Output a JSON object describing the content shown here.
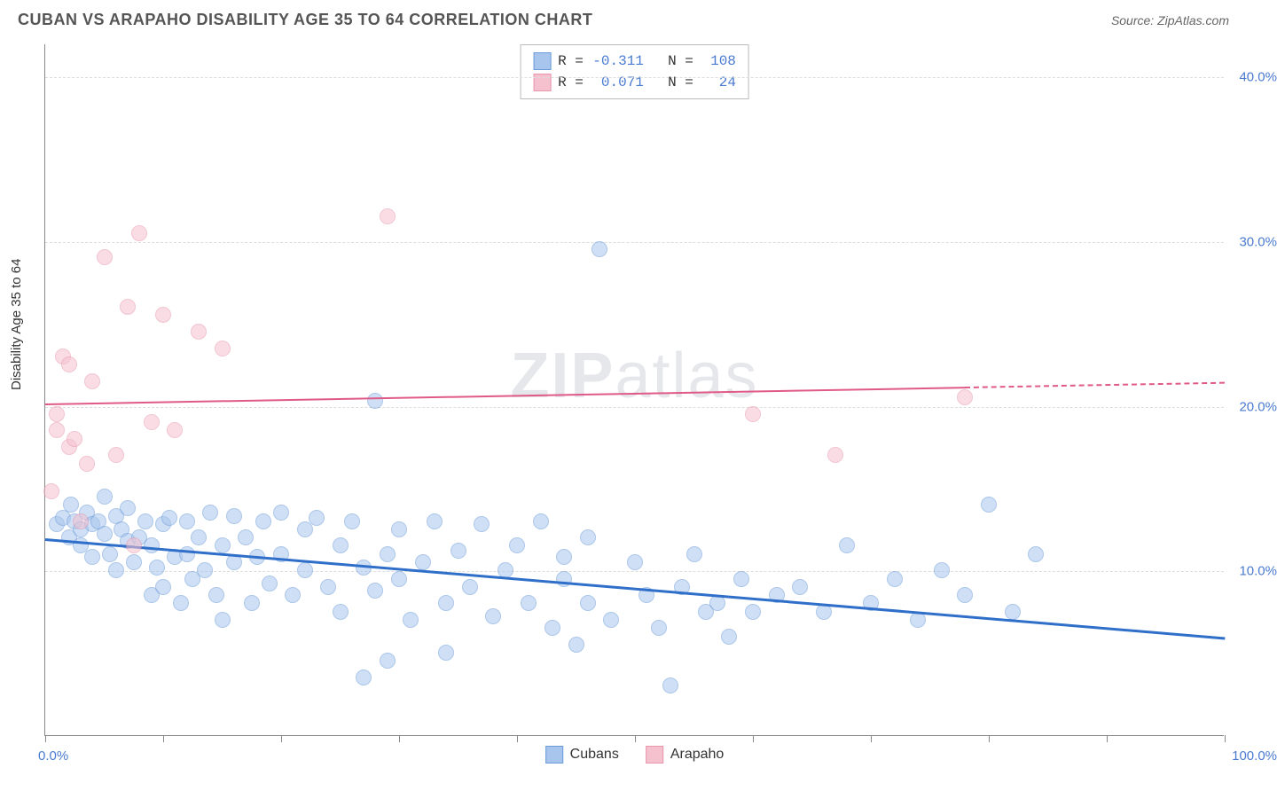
{
  "title": "CUBAN VS ARAPAHO DISABILITY AGE 35 TO 64 CORRELATION CHART",
  "source": "Source: ZipAtlas.com",
  "ylabel": "Disability Age 35 to 64",
  "watermark_bold": "ZIP",
  "watermark_light": "atlas",
  "chart": {
    "type": "scatter",
    "xlim": [
      0,
      100
    ],
    "ylim": [
      0,
      42
    ],
    "yticks": [
      10,
      20,
      30,
      40
    ],
    "ytick_labels": [
      "10.0%",
      "20.0%",
      "30.0%",
      "40.0%"
    ],
    "xticks": [
      0,
      10,
      20,
      30,
      40,
      50,
      60,
      70,
      80,
      90,
      100
    ],
    "xaxis_start_label": "0.0%",
    "xaxis_end_label": "100.0%",
    "background_color": "#ffffff",
    "grid_color": "#dddddd",
    "axis_color": "#888888",
    "ytick_label_color": "#4a7bd0",
    "marker_radius": 9,
    "marker_opacity": 0.55,
    "series": [
      {
        "name": "Cubans",
        "color_fill": "#a8c6ed",
        "color_stroke": "#6a9bd8",
        "R": "-0.311",
        "N": "108",
        "trend": {
          "y_at_x0": 12.0,
          "y_at_x100": 6.0,
          "color": "#2f6fc9",
          "width": 3,
          "dash_from_x": null
        },
        "points": [
          [
            1,
            12.8
          ],
          [
            1.5,
            13.2
          ],
          [
            2,
            12.0
          ],
          [
            2.2,
            14.0
          ],
          [
            2.5,
            13.0
          ],
          [
            3,
            11.5
          ],
          [
            3,
            12.5
          ],
          [
            3.5,
            13.5
          ],
          [
            4,
            12.8
          ],
          [
            4,
            10.8
          ],
          [
            4.5,
            13.0
          ],
          [
            5,
            12.2
          ],
          [
            5,
            14.5
          ],
          [
            5.5,
            11.0
          ],
          [
            6,
            13.3
          ],
          [
            6,
            10.0
          ],
          [
            6.5,
            12.5
          ],
          [
            7,
            11.8
          ],
          [
            7,
            13.8
          ],
          [
            7.5,
            10.5
          ],
          [
            8,
            12.0
          ],
          [
            8.5,
            13.0
          ],
          [
            9,
            11.5
          ],
          [
            9,
            8.5
          ],
          [
            9.5,
            10.2
          ],
          [
            10,
            12.8
          ],
          [
            10,
            9.0
          ],
          [
            10.5,
            13.2
          ],
          [
            11,
            10.8
          ],
          [
            11.5,
            8.0
          ],
          [
            12,
            11.0
          ],
          [
            12,
            13.0
          ],
          [
            12.5,
            9.5
          ],
          [
            13,
            12.0
          ],
          [
            13.5,
            10.0
          ],
          [
            14,
            13.5
          ],
          [
            14.5,
            8.5
          ],
          [
            15,
            11.5
          ],
          [
            15,
            7.0
          ],
          [
            16,
            13.3
          ],
          [
            16,
            10.5
          ],
          [
            17,
            12.0
          ],
          [
            17.5,
            8.0
          ],
          [
            18,
            10.8
          ],
          [
            18.5,
            13.0
          ],
          [
            19,
            9.2
          ],
          [
            20,
            11.0
          ],
          [
            20,
            13.5
          ],
          [
            21,
            8.5
          ],
          [
            22,
            10.0
          ],
          [
            22,
            12.5
          ],
          [
            23,
            13.2
          ],
          [
            24,
            9.0
          ],
          [
            25,
            11.5
          ],
          [
            25,
            7.5
          ],
          [
            26,
            13.0
          ],
          [
            27,
            10.2
          ],
          [
            27,
            3.5
          ],
          [
            28,
            8.8
          ],
          [
            28,
            20.3
          ],
          [
            29,
            11.0
          ],
          [
            29,
            4.5
          ],
          [
            30,
            9.5
          ],
          [
            30,
            12.5
          ],
          [
            31,
            7.0
          ],
          [
            32,
            10.5
          ],
          [
            33,
            13.0
          ],
          [
            34,
            8.0
          ],
          [
            34,
            5.0
          ],
          [
            35,
            11.2
          ],
          [
            36,
            9.0
          ],
          [
            37,
            12.8
          ],
          [
            38,
            7.2
          ],
          [
            39,
            10.0
          ],
          [
            40,
            11.5
          ],
          [
            41,
            8.0
          ],
          [
            42,
            13.0
          ],
          [
            43,
            6.5
          ],
          [
            44,
            9.5
          ],
          [
            44,
            10.8
          ],
          [
            45,
            5.5
          ],
          [
            46,
            8.0
          ],
          [
            46,
            12.0
          ],
          [
            47,
            29.5
          ],
          [
            48,
            7.0
          ],
          [
            50,
            10.5
          ],
          [
            51,
            8.5
          ],
          [
            52,
            6.5
          ],
          [
            53,
            3.0
          ],
          [
            54,
            9.0
          ],
          [
            55,
            11.0
          ],
          [
            56,
            7.5
          ],
          [
            57,
            8.0
          ],
          [
            58,
            6.0
          ],
          [
            59,
            9.5
          ],
          [
            60,
            7.5
          ],
          [
            62,
            8.5
          ],
          [
            64,
            9.0
          ],
          [
            66,
            7.5
          ],
          [
            68,
            11.5
          ],
          [
            70,
            8.0
          ],
          [
            72,
            9.5
          ],
          [
            74,
            7.0
          ],
          [
            76,
            10.0
          ],
          [
            78,
            8.5
          ],
          [
            80,
            14.0
          ],
          [
            82,
            7.5
          ],
          [
            84,
            11.0
          ]
        ]
      },
      {
        "name": "Arapaho",
        "color_fill": "#f5c1cf",
        "color_stroke": "#e896ac",
        "R": "0.071",
        "N": "24",
        "trend": {
          "y_at_x0": 20.2,
          "y_at_x100": 21.5,
          "color": "#e05a87",
          "width": 2,
          "dash_from_x": 78
        },
        "points": [
          [
            0.5,
            14.8
          ],
          [
            1,
            18.5
          ],
          [
            1,
            19.5
          ],
          [
            1.5,
            23.0
          ],
          [
            2,
            17.5
          ],
          [
            2,
            22.5
          ],
          [
            2.5,
            18.0
          ],
          [
            3,
            13.0
          ],
          [
            3.5,
            16.5
          ],
          [
            4,
            21.5
          ],
          [
            5,
            29.0
          ],
          [
            6,
            17.0
          ],
          [
            7,
            26.0
          ],
          [
            7.5,
            11.5
          ],
          [
            8,
            30.5
          ],
          [
            9,
            19.0
          ],
          [
            10,
            25.5
          ],
          [
            11,
            18.5
          ],
          [
            13,
            24.5
          ],
          [
            15,
            23.5
          ],
          [
            29,
            31.5
          ],
          [
            60,
            19.5
          ],
          [
            67,
            17.0
          ],
          [
            78,
            20.5
          ]
        ]
      }
    ]
  },
  "legend": {
    "items": [
      {
        "label": "Cubans",
        "fill": "#a8c6ed",
        "stroke": "#6a9bd8"
      },
      {
        "label": "Arapaho",
        "fill": "#f5c1cf",
        "stroke": "#e896ac"
      }
    ]
  }
}
